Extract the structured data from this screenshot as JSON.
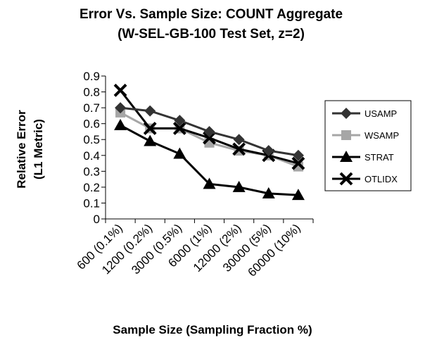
{
  "chart_data": {
    "type": "line",
    "title": "Error Vs. Sample Size: COUNT Aggregate",
    "subtitle": "(W-SEL-GB-100 Test Set, z=2)",
    "xlabel": "Sample Size (Sampling Fraction %)",
    "ylabel": [
      "Relative Error",
      "(L1 Metric)"
    ],
    "categories": [
      "600 (0.1%)",
      "1200 (0.2%)",
      "3000 (0.5%)",
      "6000 (1%)",
      "12000 (2%)",
      "30000 (5%)",
      "60000 (10%)"
    ],
    "y_ticks": [
      "0",
      "0.1",
      "0.2",
      "0.3",
      "0.4",
      "0.5",
      "0.6",
      "0.7",
      "0.8",
      "0.9"
    ],
    "ylim": [
      0,
      0.9
    ],
    "grid": false,
    "legend_position": "right",
    "series": [
      {
        "name": "USAMP",
        "marker": "diamond",
        "color": "#333333",
        "values": [
          0.7,
          0.68,
          0.62,
          0.55,
          0.5,
          0.43,
          0.4
        ]
      },
      {
        "name": "WSAMP",
        "marker": "square",
        "color": "#a6a6a6",
        "values": [
          0.67,
          0.57,
          0.57,
          0.48,
          0.43,
          0.4,
          0.33
        ]
      },
      {
        "name": "STRAT",
        "marker": "triangle",
        "color": "#000000",
        "values": [
          0.59,
          0.49,
          0.41,
          0.22,
          0.2,
          0.16,
          0.15
        ]
      },
      {
        "name": "OTLIDX",
        "marker": "x",
        "color": "#000000",
        "values": [
          0.81,
          0.57,
          0.57,
          0.51,
          0.44,
          0.4,
          0.35
        ]
      }
    ]
  }
}
